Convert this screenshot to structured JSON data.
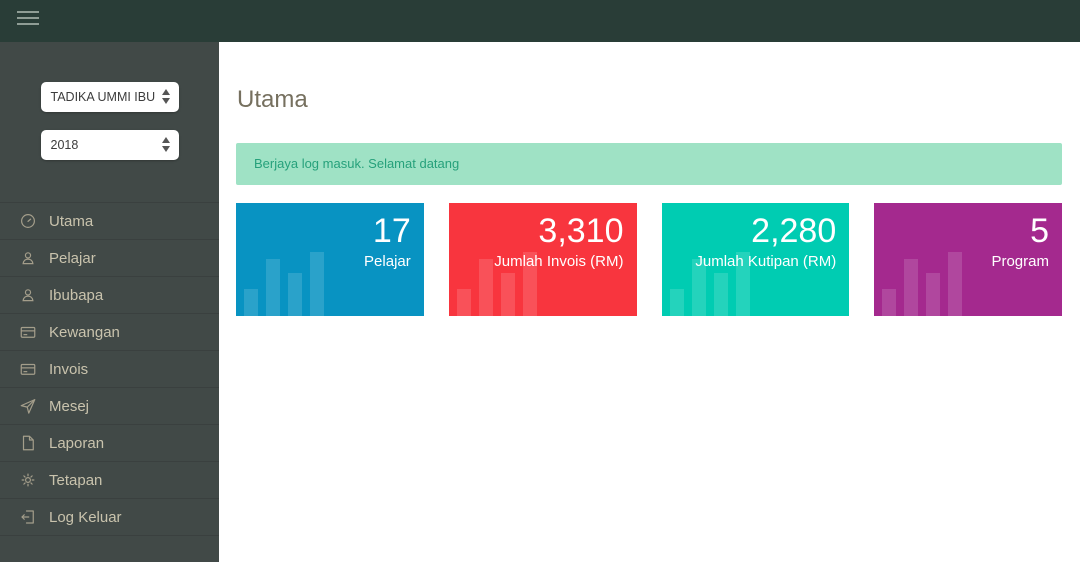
{
  "topbar": {
    "hamburger_icon": "menu-icon"
  },
  "sidebar": {
    "school_select": {
      "value": "TADIKA UMMI IBU"
    },
    "year_select": {
      "value": "2018"
    },
    "menu": [
      {
        "label": "Utama",
        "icon": "dashboard-icon"
      },
      {
        "label": "Pelajar",
        "icon": "user-icon"
      },
      {
        "label": "Ibubapa",
        "icon": "user-icon"
      },
      {
        "label": "Kewangan",
        "icon": "credit-card-icon"
      },
      {
        "label": "Invois",
        "icon": "credit-card-icon"
      },
      {
        "label": "Mesej",
        "icon": "send-icon"
      },
      {
        "label": "Laporan",
        "icon": "file-icon"
      },
      {
        "label": "Tetapan",
        "icon": "gear-icon"
      },
      {
        "label": "Log Keluar",
        "icon": "logout-icon"
      }
    ]
  },
  "main": {
    "title": "Utama",
    "alert_message": "Berjaya log masuk. Selamat datang",
    "cards": [
      {
        "value": "17",
        "label": "Pelajar",
        "color": "#0893c2"
      },
      {
        "value": "3,310",
        "label": "Jumlah Invois (RM)",
        "color": "#f8353e"
      },
      {
        "value": "2,280",
        "label": "Jumlah Kutipan (RM)",
        "color": "#00ccb2"
      },
      {
        "value": "5",
        "label": "Program",
        "color": "#a4298e"
      }
    ]
  },
  "colors": {
    "topbar_bg": "#293d37",
    "sidebar_bg": "#414947",
    "sidebar_text": "#c9c3ad",
    "alert_bg": "#9fe2c5",
    "alert_text": "#26a17b",
    "title_text": "#76705f"
  }
}
